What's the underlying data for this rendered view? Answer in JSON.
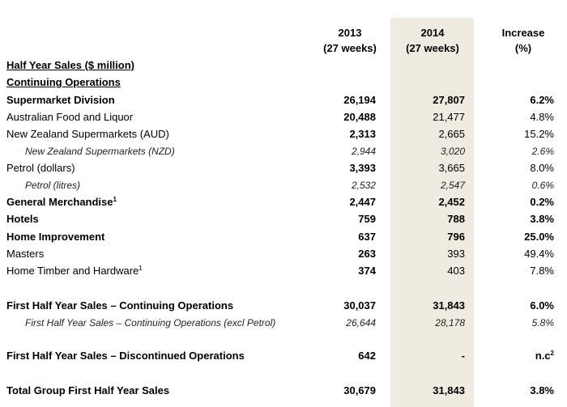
{
  "header": {
    "col2013_year": "2013",
    "col2013_weeks": "(27 weeks)",
    "col2014_year": "2014",
    "col2014_weeks": "(27 weeks)",
    "increase_title": "Increase",
    "increase_unit": "(%)"
  },
  "section_title": "Half Year Sales ($ million)",
  "subsection_title": "Continuing Operations",
  "rows": [
    {
      "label": "Supermarket Division",
      "v2013": "26,194",
      "v2014": "27,807",
      "inc": "6.2%"
    },
    {
      "label": "Australian Food and Liquor",
      "v2013": "20,488",
      "v2014": "21,477",
      "inc": "4.8%"
    },
    {
      "label": "New Zealand Supermarkets (AUD)",
      "v2013": "2,313",
      "v2014": "2,665",
      "inc": "15.2%"
    },
    {
      "label": "New Zealand Supermarkets (NZD)",
      "v2013": "2,944",
      "v2014": "3,020",
      "inc": "2.6%"
    },
    {
      "label": "Petrol (dollars)",
      "v2013": "3,393",
      "v2014": "3,665",
      "inc": "8.0%"
    },
    {
      "label": "Petrol (litres)",
      "v2013": "2,532",
      "v2014": "2,547",
      "inc": "0.6%"
    },
    {
      "label": "General Merchandise",
      "sup": "1",
      "v2013": "2,447",
      "v2014": "2,452",
      "inc": "0.2%"
    },
    {
      "label": "Hotels",
      "v2013": "759",
      "v2014": "788",
      "inc": "3.8%"
    },
    {
      "label": "Home Improvement",
      "v2013": "637",
      "v2014": "796",
      "inc": "25.0%"
    },
    {
      "label": "Masters",
      "v2013": "263",
      "v2014": "393",
      "inc": "49.4%"
    },
    {
      "label": "Home Timber and Hardware",
      "sup": "1",
      "v2013": "374",
      "v2014": "403",
      "inc": "7.8%"
    },
    {
      "label": "First Half Year Sales – Continuing Operations",
      "v2013": "30,037",
      "v2014": "31,843",
      "inc": "6.0%"
    },
    {
      "label": "First Half Year Sales – Continuing Operations (excl Petrol)",
      "v2013": "26,644",
      "v2014": "28,178",
      "inc": "5.8%"
    },
    {
      "label": "First Half Year Sales – Discontinued Operations",
      "v2013": "642",
      "v2014": "-",
      "inc": "n.c",
      "inc_sup": "2"
    },
    {
      "label": "Total Group First Half Year Sales",
      "v2013": "30,679",
      "v2014": "31,843",
      "inc": "3.8%"
    }
  ]
}
